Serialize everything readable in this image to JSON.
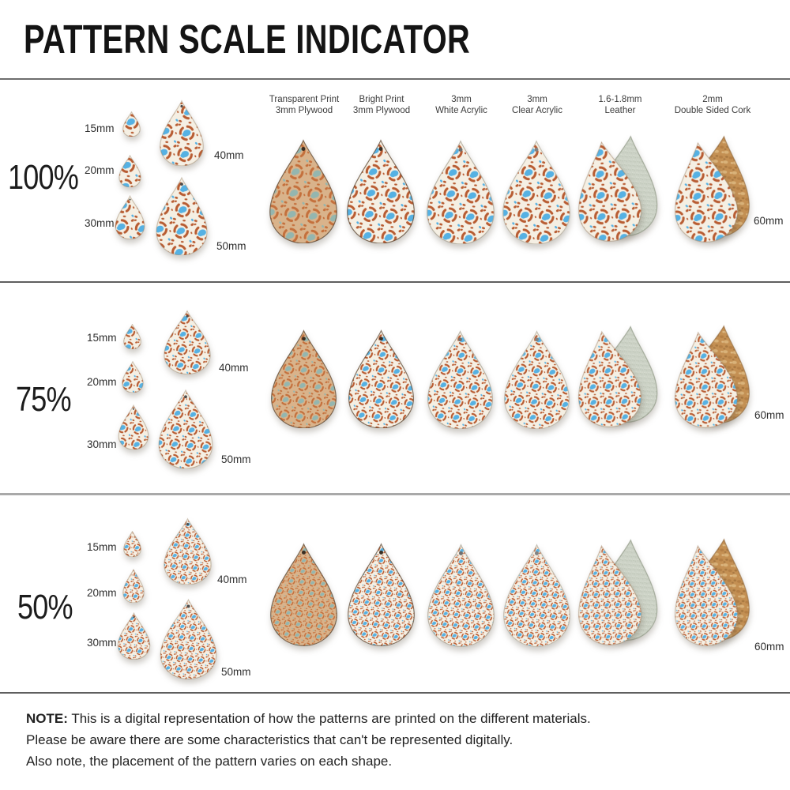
{
  "title": "PATTERN SCALE INDICATOR",
  "columns": [
    {
      "line1": "Transparent Print",
      "line2": "3mm Plywood"
    },
    {
      "line1": "Bright Print",
      "line2": "3mm Plywood"
    },
    {
      "line1": "3mm",
      "line2": "White Acrylic"
    },
    {
      "line1": "3mm",
      "line2": "Clear Acrylic"
    },
    {
      "line1": "1.6-1.8mm",
      "line2": "Leather"
    },
    {
      "line1": "2mm",
      "line2": "Double Sided Cork"
    }
  ],
  "rows": [
    {
      "scale_label": "100%",
      "sizes": {
        "s15": "15mm",
        "s20": "20mm",
        "s30": "30mm",
        "s40": "40mm",
        "s50": "50mm",
        "s60": "60mm"
      }
    },
    {
      "scale_label": "75%",
      "sizes": {
        "s15": "15mm",
        "s20": "20mm",
        "s30": "30mm",
        "s40": "40mm",
        "s50": "50mm",
        "s60": "60mm"
      }
    },
    {
      "scale_label": "50%",
      "sizes": {
        "s15": "15mm",
        "s20": "20mm",
        "s30": "30mm",
        "s40": "40mm",
        "s50": "50mm",
        "s60": "60mm"
      }
    }
  ],
  "note": {
    "label": "NOTE:",
    "line1": "This is a digital representation of how the patterns are printed on the different materials.",
    "line2": "Please be aware there are some characteristics that can't be represented digitally.",
    "line3": "Also note, the placement of the pattern varies on each shape."
  },
  "colors": {
    "pattern_orange": "#b85c32",
    "pattern_blue": "#56b1e3",
    "cream_background": "#f5efe3",
    "wood_background": "#d9b38b",
    "wood_orange": "#c4703c",
    "wood_muted_blue": "#94b6af",
    "leather_suede_back": "#ccd2c6",
    "cork_back": "#c49053",
    "divider_dark": "#5f5f5f",
    "divider_light": "#a9a9a9",
    "text_dark": "#1c1c1c"
  }
}
